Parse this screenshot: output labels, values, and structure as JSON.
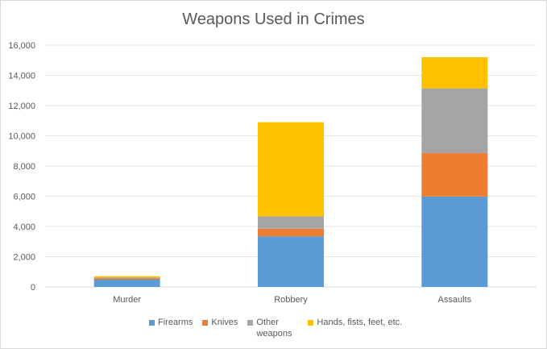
{
  "chart_data": {
    "type": "bar",
    "stacked": true,
    "title": "Weapons Used in Crimes",
    "categories": [
      "Murder",
      "Robbery",
      "Assaults"
    ],
    "series": [
      {
        "name": "Firearms",
        "color": "#5b9bd5",
        "values": [
          480,
          3350,
          5980
        ]
      },
      {
        "name": "Knives",
        "color": "#ed7d31",
        "values": [
          80,
          500,
          2870
        ]
      },
      {
        "name": "Other\nweapons",
        "color": "#a5a5a5",
        "values": [
          60,
          820,
          4290
        ]
      },
      {
        "name": "Hands, fists, feet, etc.",
        "color": "#ffc000",
        "values": [
          90,
          6230,
          2060
        ]
      }
    ],
    "ylim": [
      0,
      16000
    ],
    "yticks": [
      "0",
      "2,000",
      "4,000",
      "6,000",
      "8,000",
      "10,000",
      "12,000",
      "14,000",
      "16,000"
    ],
    "grid": true,
    "legend_position": "bottom"
  }
}
